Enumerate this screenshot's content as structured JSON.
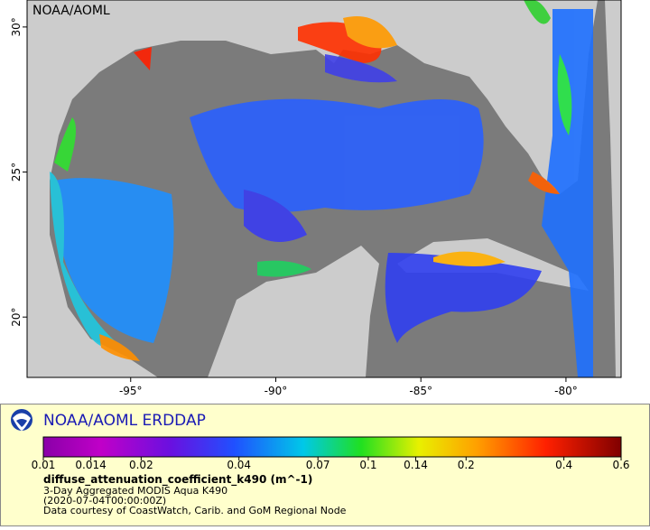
{
  "map": {
    "label": "NOAA/AOML",
    "xlim": [
      -98.57,
      -78.1
    ],
    "ylim": [
      17.92,
      30.93
    ],
    "xticks": [
      {
        "value": -95,
        "label": "-95°"
      },
      {
        "value": -90,
        "label": "-90°"
      },
      {
        "value": -85,
        "label": "-85°"
      },
      {
        "value": -80,
        "label": "-80°"
      }
    ],
    "yticks": [
      {
        "value": 30,
        "label": "30°"
      },
      {
        "value": 25,
        "label": "25°"
      },
      {
        "value": 20,
        "label": "20°"
      }
    ]
  },
  "legend": {
    "title": "NOAA/AOML ERDDAP",
    "colorbar": {
      "lim": [
        0.01,
        0.6
      ],
      "log": true,
      "ticks": [
        0.01,
        0.014,
        0.02,
        0.04,
        0.07,
        0.1,
        0.14,
        0.2,
        0.4,
        0.6
      ]
    },
    "variable": "diffuse_attenuation_coefficient_k490 (m^-1)",
    "lines": [
      "3-Day Aggregated MODIS Aqua K490",
      "(2020-07-04T00:00:00Z)",
      "Data courtesy of CoastWatch, Carib. and GoM Regional Node"
    ]
  }
}
